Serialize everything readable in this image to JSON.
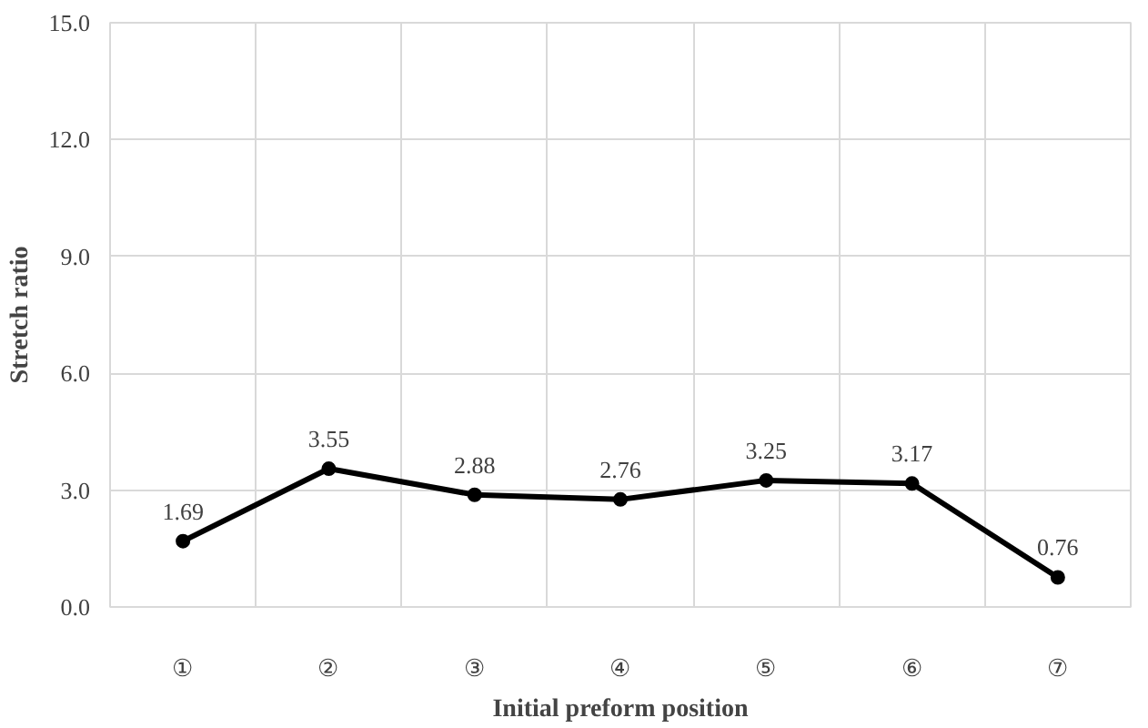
{
  "chart_data": {
    "type": "line",
    "xlabel": "Initial preform position",
    "ylabel": "Stretch ratio",
    "categories": [
      "①",
      "②",
      "③",
      "④",
      "⑤",
      "⑥",
      "⑦"
    ],
    "series": [
      {
        "color": "#000000",
        "values": [
          1.69,
          3.55,
          2.88,
          2.76,
          3.25,
          3.17,
          0.76
        ]
      }
    ],
    "ylim": [
      0,
      15
    ],
    "yticks": [
      {
        "value": 0,
        "label": "0.0"
      },
      {
        "value": 3,
        "label": "3.0"
      },
      {
        "value": 6,
        "label": "6.0"
      },
      {
        "value": 9,
        "label": "9.0"
      },
      {
        "value": 12,
        "label": "12.0"
      },
      {
        "value": 15,
        "label": "15.0"
      }
    ],
    "grid": true,
    "marker": "circle",
    "line_style": "solid",
    "data_labels": true
  }
}
